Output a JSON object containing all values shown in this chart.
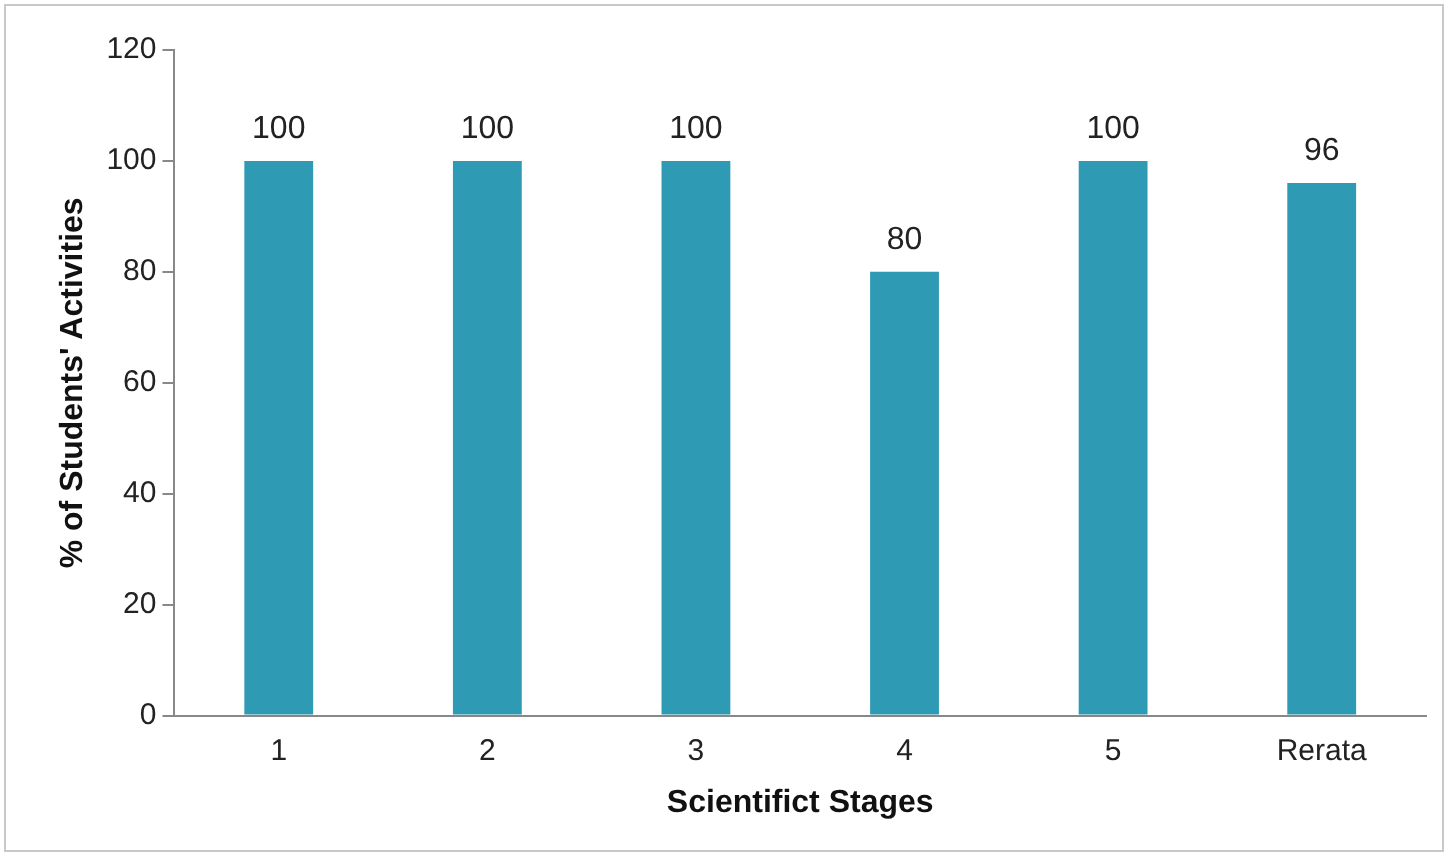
{
  "chart_data": {
    "type": "bar",
    "xlabel": "Scientifict Stages",
    "ylabel": "% of Students' Activities",
    "categories": [
      "1",
      "2",
      "3",
      "4",
      "5",
      "Rerata"
    ],
    "values": [
      100,
      100,
      100,
      80,
      100,
      96
    ],
    "color": "#2e9ab4",
    "ylim": [
      0,
      120
    ],
    "yticks": [
      0,
      20,
      40,
      60,
      80,
      100,
      120
    ],
    "grid": false,
    "data_labels": true
  }
}
